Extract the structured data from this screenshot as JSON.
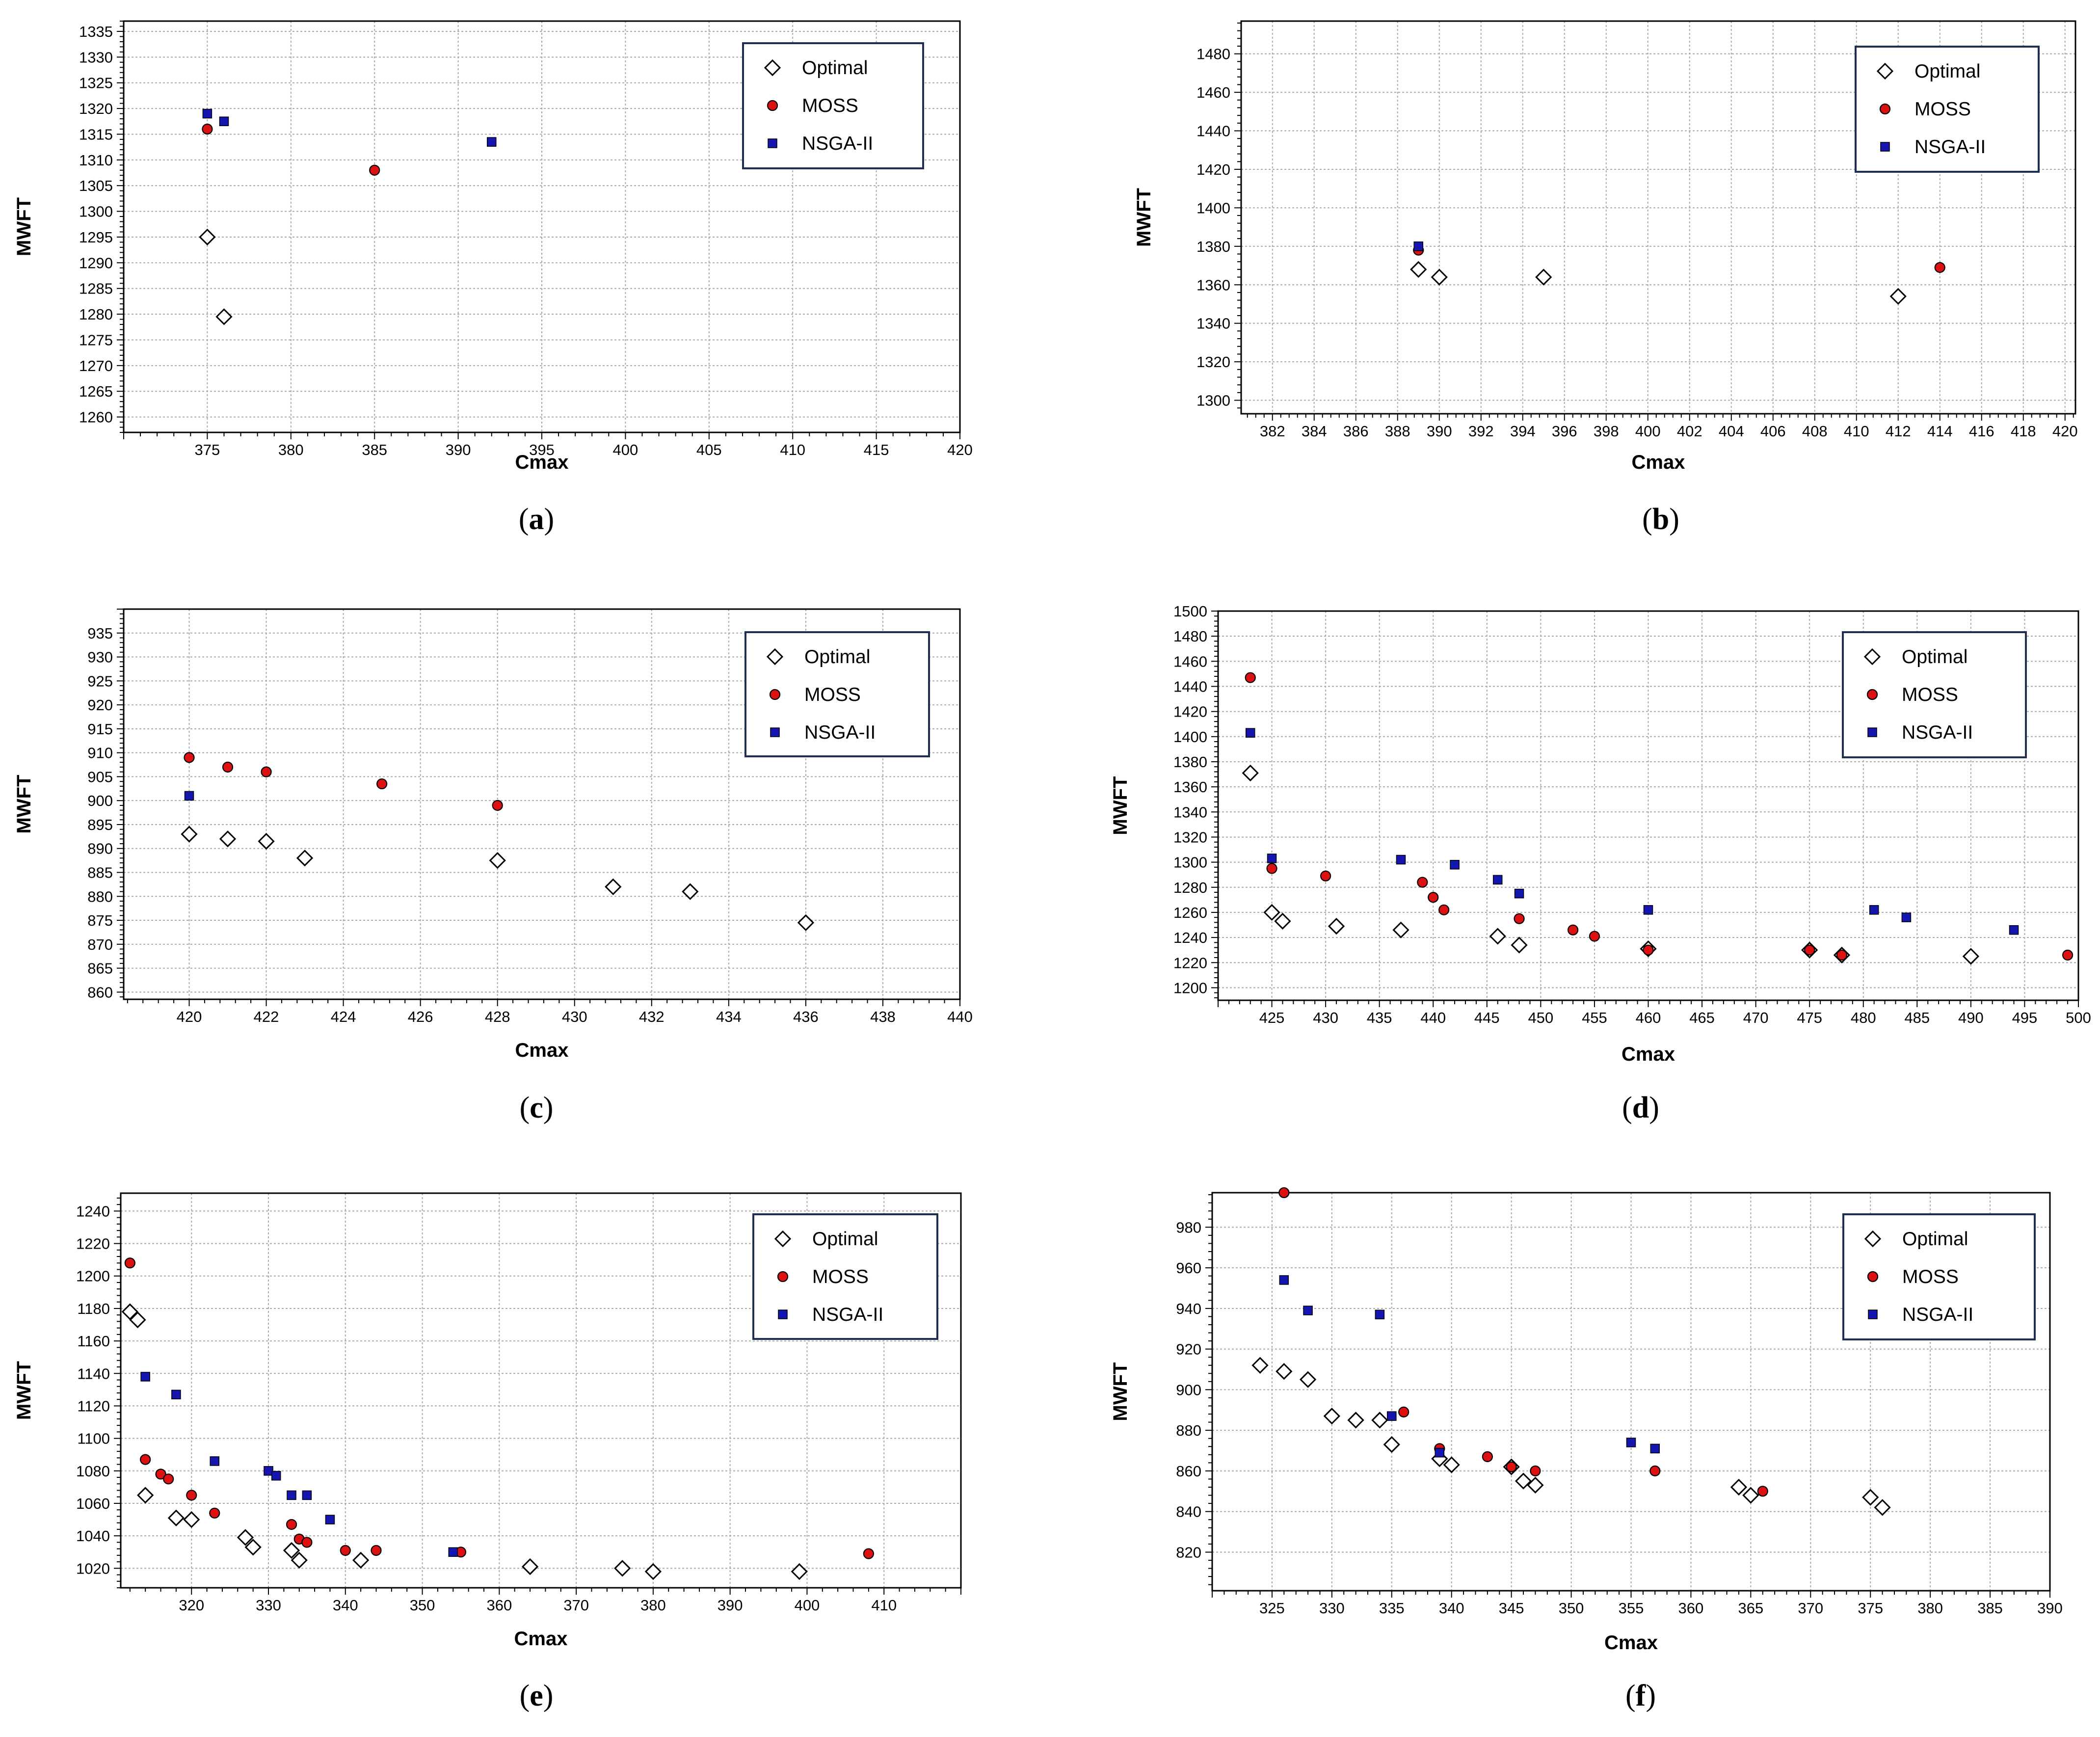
{
  "chart_data": [
    {
      "type": "scatter",
      "caption_letter": "a",
      "xlabel": "Cmax",
      "ylabel": "MWFT",
      "xlim": [
        370,
        420
      ],
      "ylim": [
        1257,
        1337
      ],
      "xticks": [
        375,
        380,
        385,
        390,
        395,
        400,
        405,
        410,
        415,
        420
      ],
      "yticks": [
        1260,
        1265,
        1270,
        1275,
        1280,
        1285,
        1290,
        1295,
        1300,
        1305,
        1310,
        1315,
        1320,
        1325,
        1330,
        1335
      ],
      "legend_position": "top-right",
      "series": [
        {
          "name": "Optimal",
          "marker": "diamond",
          "color": "#ffffff",
          "x": [
            375,
            376
          ],
          "y": [
            1295,
            1279.5
          ]
        },
        {
          "name": "MOSS",
          "marker": "circle",
          "color": "#dd1111",
          "x": [
            375,
            385
          ],
          "y": [
            1316,
            1308
          ]
        },
        {
          "name": "NSGA-II",
          "marker": "square",
          "color": "#1515b0",
          "x": [
            375,
            376,
            392
          ],
          "y": [
            1319,
            1317.5,
            1313.5
          ]
        }
      ]
    },
    {
      "type": "scatter",
      "caption_letter": "b",
      "xlabel": "Cmax",
      "ylabel": "MWFT",
      "xlim": [
        380.5,
        420.5
      ],
      "ylim": [
        1293,
        1497
      ],
      "xticks": [
        382,
        384,
        386,
        388,
        390,
        392,
        394,
        396,
        398,
        400,
        402,
        404,
        406,
        408,
        410,
        412,
        414,
        416,
        418,
        420
      ],
      "yticks": [
        1300,
        1320,
        1340,
        1360,
        1380,
        1400,
        1420,
        1440,
        1460,
        1480
      ],
      "legend_position": "top-right",
      "series": [
        {
          "name": "Optimal",
          "marker": "diamond",
          "color": "#ffffff",
          "x": [
            389,
            390,
            395,
            412
          ],
          "y": [
            1368,
            1364,
            1364,
            1354
          ]
        },
        {
          "name": "MOSS",
          "marker": "circle",
          "color": "#dd1111",
          "x": [
            389,
            414
          ],
          "y": [
            1378,
            1369
          ]
        },
        {
          "name": "NSGA-II",
          "marker": "square",
          "color": "#1515b0",
          "x": [
            389
          ],
          "y": [
            1380
          ]
        }
      ]
    },
    {
      "type": "scatter",
      "caption_letter": "c",
      "xlabel": "Cmax",
      "ylabel": "MWFT",
      "xlim": [
        418.3,
        440
      ],
      "ylim": [
        858.5,
        940
      ],
      "xticks": [
        420,
        422,
        424,
        426,
        428,
        430,
        432,
        434,
        436,
        438,
        440
      ],
      "yticks": [
        860,
        865,
        870,
        875,
        880,
        885,
        890,
        895,
        900,
        905,
        910,
        915,
        920,
        925,
        930,
        935
      ],
      "legend_position": "top-right",
      "series": [
        {
          "name": "Optimal",
          "marker": "diamond",
          "color": "#ffffff",
          "x": [
            420,
            421,
            422,
            423,
            428,
            431,
            433,
            436
          ],
          "y": [
            893,
            892,
            891.5,
            888,
            887.5,
            882,
            881,
            874.5
          ]
        },
        {
          "name": "MOSS",
          "marker": "circle",
          "color": "#dd1111",
          "x": [
            420,
            421,
            422,
            425,
            428
          ],
          "y": [
            909,
            907,
            906,
            903.5,
            899
          ]
        },
        {
          "name": "NSGA-II",
          "marker": "square",
          "color": "#1515b0",
          "x": [
            420
          ],
          "y": [
            901
          ]
        }
      ]
    },
    {
      "type": "scatter",
      "caption_letter": "d",
      "xlabel": "Cmax",
      "ylabel": "MWFT",
      "xlim": [
        420,
        500
      ],
      "ylim": [
        1190,
        1500
      ],
      "xticks": [
        425,
        430,
        435,
        440,
        445,
        450,
        455,
        460,
        465,
        470,
        475,
        480,
        485,
        490,
        495,
        500
      ],
      "yticks": [
        1200,
        1220,
        1240,
        1260,
        1280,
        1300,
        1320,
        1340,
        1360,
        1380,
        1400,
        1420,
        1440,
        1460,
        1480,
        1500
      ],
      "legend_position": "top-right",
      "series": [
        {
          "name": "Optimal",
          "marker": "diamond",
          "color": "#ffffff",
          "x": [
            423,
            425,
            426,
            431,
            437,
            446,
            448,
            460,
            475,
            478,
            490
          ],
          "y": [
            1371,
            1260,
            1253,
            1249,
            1246,
            1241,
            1234,
            1231,
            1230,
            1226,
            1225
          ]
        },
        {
          "name": "MOSS",
          "marker": "circle",
          "color": "#dd1111",
          "x": [
            423,
            425,
            430,
            439,
            440,
            441,
            448,
            453,
            455,
            460,
            475,
            478,
            499
          ],
          "y": [
            1447,
            1295,
            1289,
            1284,
            1272,
            1262,
            1255,
            1246,
            1241,
            1230,
            1230,
            1226,
            1226
          ]
        },
        {
          "name": "NSGA-II",
          "marker": "square",
          "color": "#1515b0",
          "x": [
            423,
            425,
            437,
            442,
            446,
            448,
            460,
            481,
            484,
            494
          ],
          "y": [
            1403,
            1303,
            1302,
            1298,
            1286,
            1275,
            1262,
            1262,
            1256,
            1246
          ]
        }
      ]
    },
    {
      "type": "scatter",
      "caption_letter": "e",
      "xlabel": "Cmax",
      "ylabel": "MWFT",
      "xlim": [
        310.8,
        420
      ],
      "ylim": [
        1008,
        1251
      ],
      "xticks": [
        320,
        330,
        340,
        350,
        360,
        370,
        380,
        390,
        400,
        410
      ],
      "yticks": [
        1020,
        1040,
        1060,
        1080,
        1100,
        1120,
        1140,
        1160,
        1180,
        1200,
        1220,
        1240
      ],
      "legend_position": "top-right",
      "series": [
        {
          "name": "Optimal",
          "marker": "diamond",
          "color": "#ffffff",
          "x": [
            312,
            313,
            314,
            318,
            320,
            327,
            328,
            333,
            334,
            342,
            364,
            376,
            380,
            399
          ],
          "y": [
            1178,
            1173,
            1065,
            1051,
            1050,
            1039,
            1033,
            1031,
            1025,
            1025,
            1021,
            1020,
            1018,
            1018
          ]
        },
        {
          "name": "MOSS",
          "marker": "circle",
          "color": "#dd1111",
          "x": [
            312,
            314,
            316,
            317,
            320,
            323,
            333,
            334,
            335,
            340,
            344,
            355,
            408
          ],
          "y": [
            1208,
            1087,
            1078,
            1075,
            1065,
            1054,
            1047,
            1038,
            1036,
            1031,
            1031,
            1030,
            1029
          ]
        },
        {
          "name": "NSGA-II",
          "marker": "square",
          "color": "#1515b0",
          "x": [
            314,
            318,
            323,
            330,
            331,
            333,
            335,
            338,
            354
          ],
          "y": [
            1138,
            1127,
            1086,
            1080,
            1077,
            1065,
            1065,
            1050,
            1030
          ]
        }
      ]
    },
    {
      "type": "scatter",
      "caption_letter": "f",
      "xlabel": "Cmax",
      "ylabel": "MWFT",
      "xlim": [
        320,
        390
      ],
      "ylim": [
        801,
        997
      ],
      "xticks": [
        325,
        330,
        335,
        340,
        345,
        350,
        355,
        360,
        365,
        370,
        375,
        380,
        385,
        390
      ],
      "yticks": [
        820,
        840,
        860,
        880,
        900,
        920,
        940,
        960,
        980
      ],
      "legend_position": "top-right",
      "series": [
        {
          "name": "Optimal",
          "marker": "diamond",
          "color": "#ffffff",
          "x": [
            324,
            326,
            328,
            330,
            332,
            334,
            335,
            339,
            340,
            345,
            346,
            347,
            364,
            365,
            375,
            376
          ],
          "y": [
            912,
            909,
            905,
            887,
            885,
            885,
            873,
            866,
            863,
            862,
            855,
            853,
            852,
            848,
            847,
            842
          ]
        },
        {
          "name": "MOSS",
          "marker": "circle",
          "color": "#dd1111",
          "x": [
            326,
            336,
            339,
            343,
            345,
            347,
            357,
            366
          ],
          "y": [
            997,
            889,
            871,
            867,
            862,
            860,
            860,
            850
          ]
        },
        {
          "name": "NSGA-II",
          "marker": "square",
          "color": "#1515b0",
          "x": [
            326,
            328,
            334,
            335,
            339,
            355,
            357
          ],
          "y": [
            954,
            939,
            937,
            887,
            869,
            874,
            871
          ]
        }
      ]
    }
  ]
}
